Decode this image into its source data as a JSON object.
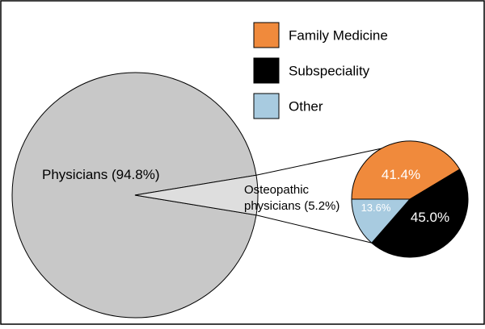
{
  "chart_data": [
    {
      "type": "pie",
      "categories": [
        "Physicians",
        "Osteopathic physicians"
      ],
      "values": [
        94.8,
        5.2
      ],
      "labels": [
        "Physicians (94.8%)",
        "Osteopathic physicians (5.2%)"
      ],
      "label_lines": [
        [
          "Physicians (94.8%)"
        ],
        [
          "Osteopathic",
          "physicians (5.2%)"
        ]
      ],
      "colors": [
        "#c8c8c8",
        "#dedede"
      ]
    },
    {
      "type": "pie",
      "categories": [
        "Family Medicine",
        "Subspeciality",
        "Other"
      ],
      "values": [
        41.4,
        45.0,
        13.6
      ],
      "labels": [
        "41.4%",
        "45.0%",
        "13.6%"
      ],
      "colors": [
        "#f08a3c",
        "#000000",
        "#a8cbe0"
      ],
      "label_colors": [
        "#ffffff",
        "#ffffff",
        "#ffffff"
      ],
      "legend": {
        "placement": "top-right",
        "entries": [
          {
            "label": "Family Medicine",
            "color": "#f08a3c"
          },
          {
            "label": "Subspeciality",
            "color": "#000000"
          },
          {
            "label": "Other",
            "color": "#a8cbe0"
          }
        ]
      }
    }
  ]
}
